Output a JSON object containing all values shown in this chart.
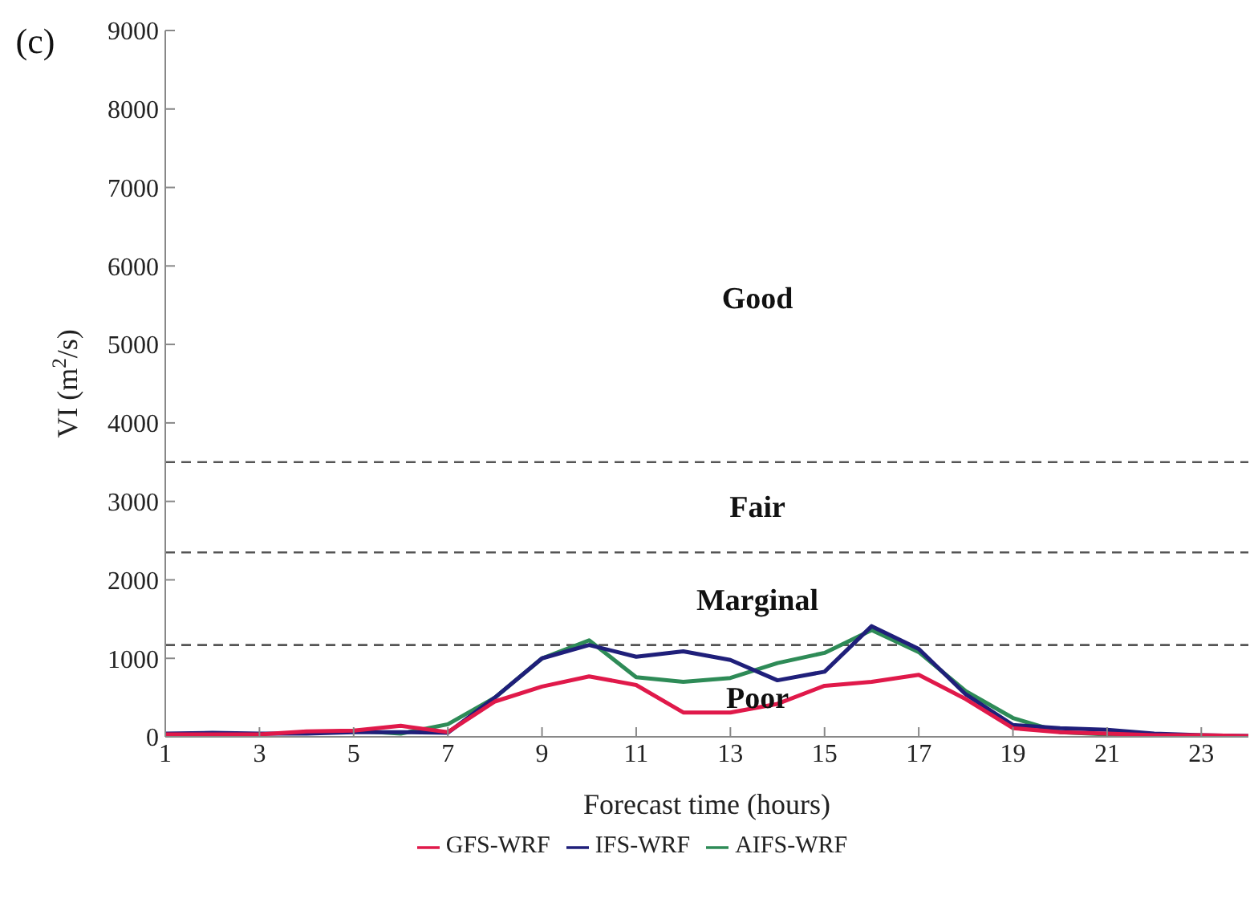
{
  "chart_data": {
    "type": "line",
    "xlabel": "Forecast time (hours)",
    "ylabel": "VI (m$^{2}$/s)",
    "x": [
      1,
      2,
      3,
      4,
      5,
      6,
      7,
      8,
      9,
      10,
      11,
      12,
      13,
      14,
      15,
      16,
      17,
      18,
      19,
      20,
      21,
      22,
      23,
      24
    ],
    "series": [
      {
        "name": "GFS-WRF",
        "color": "#e0194a",
        "values": [
          30,
          30,
          30,
          70,
          80,
          140,
          60,
          450,
          640,
          770,
          660,
          310,
          310,
          420,
          650,
          700,
          790,
          480,
          110,
          60,
          40,
          20,
          20,
          10
        ]
      },
      {
        "name": "IFS-WRF",
        "color": "#1f1f7a",
        "values": [
          40,
          50,
          40,
          40,
          60,
          60,
          50,
          500,
          1000,
          1170,
          1020,
          1090,
          980,
          720,
          830,
          1410,
          1120,
          540,
          150,
          110,
          90,
          40,
          20,
          10
        ]
      },
      {
        "name": "AIFS-WRF",
        "color": "#2e8b57",
        "values": [
          null,
          null,
          null,
          null,
          80,
          40,
          160,
          500,
          1000,
          1230,
          760,
          700,
          750,
          940,
          1070,
          1360,
          1080,
          580,
          240,
          60,
          30,
          20,
          null,
          null
        ]
      }
    ],
    "xlim": [
      1,
      24
    ],
    "xticks": [
      1,
      3,
      5,
      7,
      9,
      11,
      13,
      15,
      17,
      19,
      21,
      23
    ],
    "ylim": [
      0,
      9000
    ],
    "yticks": [
      0,
      1000,
      2000,
      3000,
      4000,
      5000,
      6000,
      7000,
      8000,
      9000
    ],
    "ref_lines": [
      {
        "axis": "y",
        "value": 3500,
        "color": "#555555",
        "line_style": "dashed"
      },
      {
        "axis": "y",
        "value": 2350,
        "color": "#555555",
        "line_style": "dashed"
      },
      {
        "axis": "y",
        "value": 1170,
        "color": "#555555",
        "line_style": "dashed"
      }
    ],
    "annotations": [
      "(c)",
      "Good",
      "Fair",
      "Marginal",
      "Poor"
    ],
    "grid": false,
    "legend": "bottom",
    "marker": "none",
    "line_style": "solid"
  }
}
